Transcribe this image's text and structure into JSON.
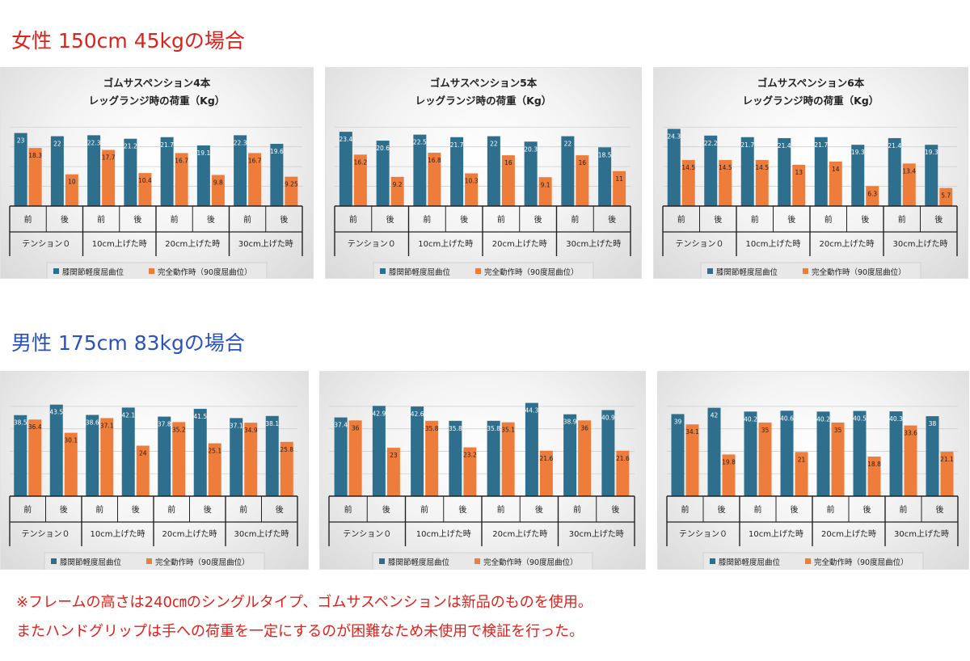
{
  "sections": {
    "female_title": "女性 150cm 45kgの場合",
    "male_title": "男性 175cm 83kgの場合"
  },
  "notes": {
    "line1": "※フレームの高さは240㎝のシングルタイプ、ゴムサスペンションは新品のものを使用。",
    "line2": "またハンドグリップは手への荷重を一定にするのが困難なため未使用で検証を行った。"
  },
  "colors": {
    "female_title": "#e0201a",
    "male_title": "#2a52be",
    "note": "#e0201a",
    "series_blue": "#2e6f8e",
    "series_orange": "#ee7d3b"
  },
  "chart_data": [
    {
      "type": "bar",
      "group": "female",
      "title": [
        "ゴムサスペンション4本",
        "レッグランジ時の荷重（Kg）"
      ],
      "categories": [
        "前",
        "後",
        "前",
        "後",
        "前",
        "後",
        "前",
        "後"
      ],
      "groups": [
        "テンション０",
        "10cm上げた時",
        "20cm上げた時",
        "30cm上げた時"
      ],
      "series": [
        {
          "name": "膝関節軽度屈曲位",
          "values": [
            23,
            22,
            22.3,
            21.2,
            21.7,
            19.1,
            22.3,
            19.6
          ]
        },
        {
          "name": "完全動作時（90度屈曲位）",
          "values": [
            18.3,
            10,
            17.7,
            10.4,
            16.7,
            9.8,
            16.7,
            9.25
          ]
        }
      ],
      "ylim": [
        0,
        28
      ]
    },
    {
      "type": "bar",
      "group": "female",
      "title": [
        "ゴムサスペンション5本",
        "レッグランジ時の荷重（Kg）"
      ],
      "categories": [
        "前",
        "後",
        "前",
        "後",
        "前",
        "後",
        "前",
        "後"
      ],
      "groups": [
        "テンション０",
        "10cm上げた時",
        "20cm上げた時",
        "30cm上げた時"
      ],
      "series": [
        {
          "name": "膝関節軽度屈曲位",
          "values": [
            23.4,
            20.6,
            22.5,
            21.7,
            22,
            20.3,
            22,
            18.5
          ]
        },
        {
          "name": "完全動作時（90度屈曲位）",
          "values": [
            16.2,
            9.2,
            16.8,
            10.3,
            16,
            9.1,
            16,
            11
          ]
        }
      ],
      "ylim": [
        0,
        28
      ]
    },
    {
      "type": "bar",
      "group": "female",
      "title": [
        "ゴムサスペンション6本",
        "レッグランジ時の荷重（Kg）"
      ],
      "categories": [
        "前",
        "後",
        "前",
        "後",
        "前",
        "後",
        "前",
        "後"
      ],
      "groups": [
        "テンション０",
        "10cm上げた時",
        "20cm上げた時",
        "30cm上げた時"
      ],
      "series": [
        {
          "name": "膝関節軽度屈曲位",
          "values": [
            24.3,
            22.2,
            21.7,
            21.4,
            21.7,
            19.3,
            21.4,
            19.3
          ]
        },
        {
          "name": "完全動作時（90度屈曲位）",
          "values": [
            14.5,
            14.5,
            14.5,
            13,
            14,
            6.3,
            13.4,
            5.7
          ]
        }
      ],
      "ylim": [
        0,
        28
      ]
    },
    {
      "type": "bar",
      "group": "male",
      "title": [],
      "categories": [
        "前",
        "後",
        "前",
        "後",
        "前",
        "後",
        "前",
        "後"
      ],
      "groups": [
        "テンション０",
        "10cm上げた時",
        "20cm上げた時",
        "30cm上げた時"
      ],
      "series": [
        {
          "name": "膝関節軽度屈曲位",
          "values": [
            38.5,
            43.5,
            38.6,
            42.1,
            37.8,
            41.5,
            37.1,
            38.1
          ]
        },
        {
          "name": "完全動作時（90度屈曲位）",
          "values": [
            36.4,
            30.1,
            37.1,
            24,
            35.2,
            25.1,
            34.9,
            25.8
          ]
        }
      ],
      "ylim": [
        0,
        48
      ]
    },
    {
      "type": "bar",
      "group": "male",
      "title": [],
      "categories": [
        "前",
        "後",
        "前",
        "後",
        "前",
        "後",
        "前",
        "後"
      ],
      "groups": [
        "テンション０",
        "10cm上げた時",
        "20cm上げた時",
        "30cm上げた時"
      ],
      "series": [
        {
          "name": "膝関節軽度屈曲位",
          "values": [
            37.4,
            42.9,
            42.6,
            35.8,
            35.8,
            44.3,
            38.9,
            40.9
          ]
        },
        {
          "name": "完全動作時（90度屈曲位）",
          "values": [
            36,
            23,
            35.8,
            23.2,
            35.1,
            21.6,
            36,
            21.6
          ]
        }
      ],
      "ylim": [
        0,
        48
      ]
    },
    {
      "type": "bar",
      "group": "male",
      "title": [],
      "categories": [
        "前",
        "後",
        "前",
        "後",
        "前",
        "後",
        "前",
        "後"
      ],
      "groups": [
        "テンション０",
        "10cm上げた時",
        "20cm上げた時",
        "30cm上げた時"
      ],
      "series": [
        {
          "name": "膝関節軽度屈曲位",
          "values": [
            39,
            42,
            40.2,
            40.6,
            40.2,
            40.5,
            40.3,
            38
          ]
        },
        {
          "name": "完全動作時（90度屈曲位）",
          "values": [
            34.1,
            19.8,
            35,
            21,
            35,
            18.8,
            33.6,
            21.1
          ]
        }
      ],
      "ylim": [
        0,
        48
      ]
    }
  ]
}
